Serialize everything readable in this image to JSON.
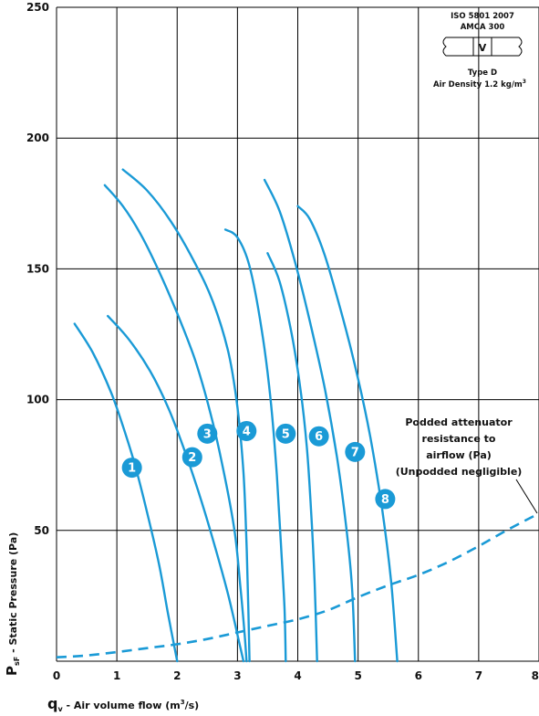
{
  "chart_data": {
    "type": "line",
    "xlim": [
      0,
      8
    ],
    "ylim": [
      0,
      250
    ],
    "x_ticks": [
      "0",
      "1",
      "2",
      "3",
      "4",
      "5",
      "6",
      "7",
      "8"
    ],
    "y_ticks": [
      "50",
      "100",
      "150",
      "200",
      "250"
    ],
    "grid": true,
    "xlabel": {
      "symbol": "q",
      "subscript": "v",
      "text": " - Air volume flow (m",
      "superscript": "3",
      "suffix": "/s)"
    },
    "ylabel": {
      "symbol": "P",
      "subscript": "sF",
      "text": " - Static Pressure (Pa)"
    },
    "series": [
      {
        "name": "1",
        "points": [
          [
            0.3,
            129
          ],
          [
            0.6,
            118
          ],
          [
            0.9,
            103
          ],
          [
            1.1,
            90
          ],
          [
            1.3,
            75
          ],
          [
            1.5,
            57
          ],
          [
            1.7,
            37
          ],
          [
            1.85,
            18
          ],
          [
            2.0,
            0
          ]
        ],
        "label_at": [
          1.25,
          74
        ]
      },
      {
        "name": "2",
        "points": [
          [
            0.85,
            132
          ],
          [
            1.2,
            123
          ],
          [
            1.55,
            111
          ],
          [
            1.85,
            97
          ],
          [
            2.1,
            82
          ],
          [
            2.35,
            65
          ],
          [
            2.6,
            46
          ],
          [
            2.85,
            25
          ],
          [
            3.05,
            5
          ],
          [
            3.1,
            0
          ]
        ],
        "label_at": [
          2.25,
          78
        ]
      },
      {
        "name": "3",
        "points": [
          [
            0.8,
            182
          ],
          [
            1.1,
            174
          ],
          [
            1.4,
            163
          ],
          [
            1.7,
            149
          ],
          [
            2.0,
            133
          ],
          [
            2.3,
            115
          ],
          [
            2.55,
            95
          ],
          [
            2.75,
            75
          ],
          [
            2.95,
            50
          ],
          [
            3.05,
            28
          ],
          [
            3.12,
            10
          ],
          [
            3.15,
            0
          ]
        ],
        "label_at": [
          2.5,
          87
        ]
      },
      {
        "name": "4",
        "points": [
          [
            1.1,
            188
          ],
          [
            1.5,
            180
          ],
          [
            1.9,
            168
          ],
          [
            2.3,
            152
          ],
          [
            2.6,
            137
          ],
          [
            2.85,
            118
          ],
          [
            3.0,
            97
          ],
          [
            3.1,
            72
          ],
          [
            3.15,
            45
          ],
          [
            3.18,
            20
          ],
          [
            3.2,
            0
          ]
        ],
        "label_at": [
          3.15,
          88
        ]
      },
      {
        "name": "5",
        "points": [
          [
            2.8,
            165
          ],
          [
            3.0,
            162
          ],
          [
            3.2,
            151
          ],
          [
            3.4,
            127
          ],
          [
            3.55,
            100
          ],
          [
            3.65,
            72
          ],
          [
            3.72,
            45
          ],
          [
            3.78,
            20
          ],
          [
            3.8,
            0
          ]
        ],
        "label_at": [
          3.8,
          87
        ]
      },
      {
        "name": "6",
        "points": [
          [
            3.5,
            156
          ],
          [
            3.7,
            145
          ],
          [
            3.9,
            125
          ],
          [
            4.05,
            103
          ],
          [
            4.15,
            82
          ],
          [
            4.22,
            58
          ],
          [
            4.28,
            30
          ],
          [
            4.32,
            0
          ]
        ],
        "label_at": [
          4.35,
          86
        ]
      },
      {
        "name": "7",
        "points": [
          [
            3.45,
            184
          ],
          [
            3.7,
            172
          ],
          [
            3.95,
            153
          ],
          [
            4.2,
            130
          ],
          [
            4.45,
            104
          ],
          [
            4.65,
            78
          ],
          [
            4.8,
            52
          ],
          [
            4.9,
            28
          ],
          [
            4.95,
            0
          ]
        ],
        "label_at": [
          4.95,
          80
        ]
      },
      {
        "name": "8",
        "points": [
          [
            4.0,
            174
          ],
          [
            4.2,
            169
          ],
          [
            4.45,
            155
          ],
          [
            4.75,
            131
          ],
          [
            5.0,
            108
          ],
          [
            5.2,
            86
          ],
          [
            5.4,
            58
          ],
          [
            5.55,
            30
          ],
          [
            5.65,
            0
          ]
        ],
        "label_at": [
          5.45,
          62
        ]
      }
    ],
    "attenuator_curve": {
      "style": "dashed",
      "points": [
        [
          0,
          1.5
        ],
        [
          0.5,
          2.2
        ],
        [
          1,
          3.5
        ],
        [
          1.5,
          5
        ],
        [
          2,
          6.5
        ],
        [
          2.5,
          8.5
        ],
        [
          3,
          11
        ],
        [
          3.5,
          13.5
        ],
        [
          4,
          16
        ],
        [
          4.5,
          19.5
        ],
        [
          5,
          24.5
        ],
        [
          5.5,
          29
        ],
        [
          6,
          33
        ],
        [
          6.5,
          38
        ],
        [
          7,
          44
        ],
        [
          7.5,
          50.5
        ],
        [
          8,
          56.5
        ]
      ],
      "label": [
        "Podded attenuator",
        "resistance to",
        "airflow (Pa)",
        "(Unpodded negligible)"
      ]
    },
    "standard_box": {
      "line1": "ISO 5801 2007",
      "line2": "AMCA 300",
      "symbol": "V",
      "line3": "Type D",
      "line4": "Air Density 1.2 kg/m",
      "line4_sup": "3"
    },
    "colors": {
      "curve": "#1a9ad6",
      "badge": "#1a9ad6",
      "grid": "#000000"
    }
  }
}
